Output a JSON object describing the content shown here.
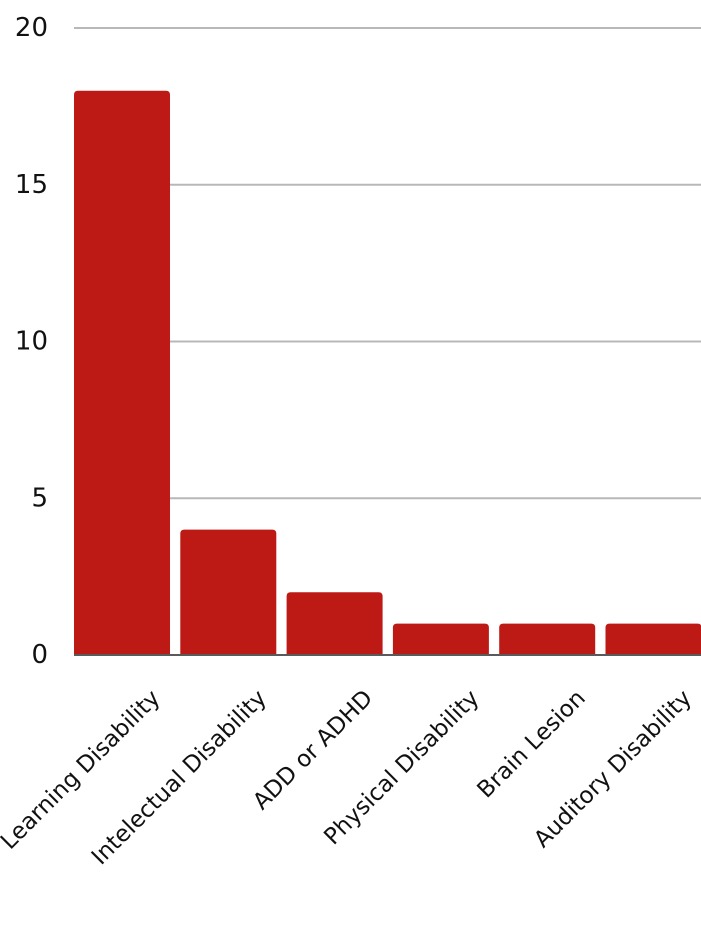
{
  "chart_data": {
    "type": "bar",
    "categories": [
      "Learning Disability",
      "Intelectual Disability",
      "ADD or ADHD",
      "Physical Disability",
      "Brain Lesion",
      "Auditory Disability"
    ],
    "values": [
      18,
      4,
      2,
      1,
      1,
      1
    ],
    "y_ticks": [
      "0",
      "5",
      "10",
      "15",
      "20"
    ],
    "ylim": [
      0,
      20
    ],
    "title": "",
    "xlabel": "",
    "ylabel": "",
    "grid": true,
    "legend": "none",
    "bar_color": "#bd1a16"
  }
}
